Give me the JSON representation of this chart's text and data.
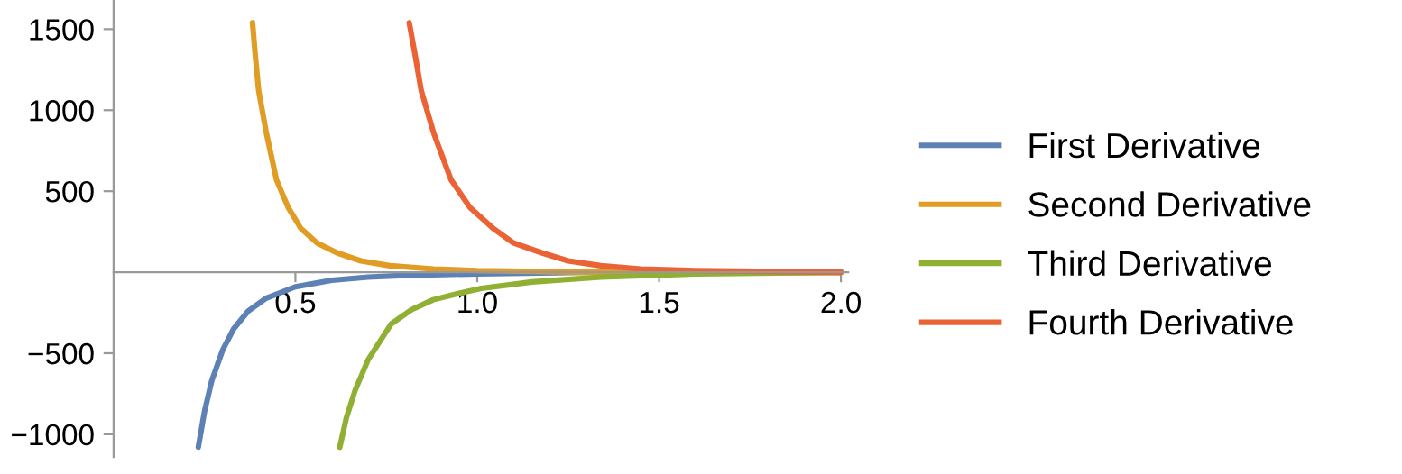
{
  "chart_data": {
    "type": "line",
    "xlim": [
      0,
      2.02
    ],
    "ylim": [
      -1140,
      1680
    ],
    "xticks": [
      {
        "value": 0.5,
        "label": "0.5"
      },
      {
        "value": 1.0,
        "label": "1.0"
      },
      {
        "value": 1.5,
        "label": "1.5"
      },
      {
        "value": 2.0,
        "label": "2.0"
      }
    ],
    "yticks": [
      -1000,
      -500,
      500,
      1000,
      1500
    ],
    "grid": false,
    "legend": "right",
    "marker": "none",
    "line_style": "solid",
    "series": [
      {
        "name": "First Derivative",
        "color": "#5e81b5",
        "x": [
          0.233,
          0.25,
          0.27,
          0.3,
          0.33,
          0.37,
          0.42,
          0.5,
          0.6,
          0.7,
          0.8,
          1.0,
          1.3,
          2.0
        ],
        "values": [
          -1080,
          -860,
          -670,
          -480,
          -350,
          -240,
          -160,
          -90,
          -50,
          -30,
          -20,
          -10,
          0,
          0
        ]
      },
      {
        "name": "Second Derivative",
        "color": "#e19c24",
        "x": [
          0.382,
          0.39,
          0.399,
          0.42,
          0.448,
          0.48,
          0.515,
          0.56,
          0.614,
          0.68,
          0.76,
          0.88,
          1.0,
          1.3,
          2.0
        ],
        "values": [
          1540,
          1330,
          1120,
          860,
          570,
          400,
          270,
          180,
          120,
          70,
          40,
          20,
          10,
          0,
          0
        ]
      },
      {
        "name": "Third Derivative",
        "color": "#8fb032",
        "x": [
          0.622,
          0.64,
          0.664,
          0.7,
          0.763,
          0.82,
          0.879,
          0.95,
          1.011,
          1.15,
          1.34,
          1.6,
          2.0
        ],
        "values": [
          -1080,
          -900,
          -730,
          -540,
          -320,
          -230,
          -170,
          -130,
          -100,
          -60,
          -30,
          -10,
          0
        ]
      },
      {
        "name": "Fourth Derivative",
        "color": "#eb6235",
        "x": [
          0.813,
          0.83,
          0.846,
          0.88,
          0.928,
          0.98,
          1.044,
          1.1,
          1.177,
          1.25,
          1.34,
          1.45,
          1.6,
          2.0
        ],
        "values": [
          1540,
          1330,
          1120,
          860,
          570,
          400,
          270,
          180,
          120,
          70,
          40,
          20,
          10,
          0
        ]
      }
    ]
  }
}
